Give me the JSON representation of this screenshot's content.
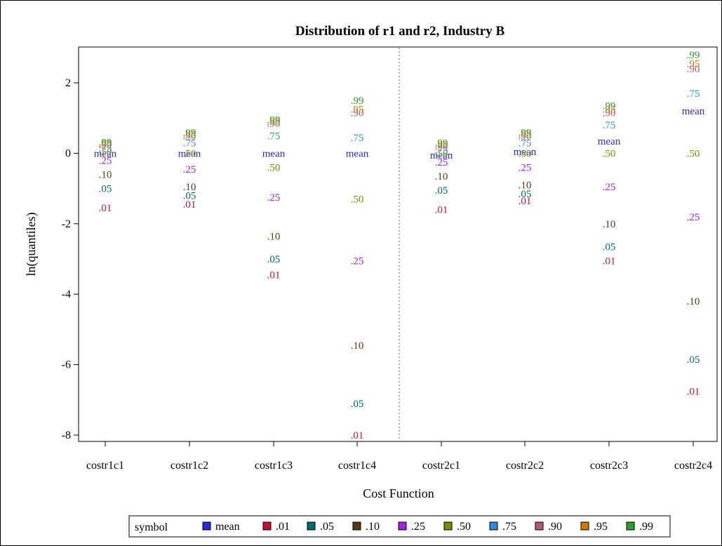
{
  "chart_data": {
    "type": "scatter",
    "title": "Distribution of r1 and r2, Industry B",
    "xlabel": "Cost Function",
    "ylabel": "ln(quantiles)",
    "ylim": [
      -8.2,
      3.0
    ],
    "yticks": [
      -8,
      -6,
      -4,
      -2,
      0,
      2
    ],
    "ytick_labels": [
      "-8",
      "-6",
      "-4",
      "-2",
      "0",
      "2"
    ],
    "categories": [
      "costr1c1",
      "costr1c2",
      "costr1c3",
      "costr1c4",
      "costr2c1",
      "costr2c2",
      "costr2c3",
      "costr2c4"
    ],
    "reference_line": {
      "between": [
        "costr1c4",
        "costr2c1"
      ],
      "style": "dotted"
    },
    "legend": {
      "title": "symbol",
      "position": "bottom",
      "entries": [
        "mean",
        ".01",
        ".05",
        ".10",
        ".25",
        ".50",
        ".75",
        ".90",
        ".95",
        ".99"
      ]
    },
    "series": [
      {
        "name": "mean",
        "marker": "mean",
        "color": "#2a2ad8",
        "values": [
          0.0,
          0.0,
          0.0,
          0.0,
          -0.05,
          0.05,
          0.35,
          1.2
        ]
      },
      {
        "name": ".01",
        "marker": ".01",
        "color": "#c8102e",
        "values": [
          -1.55,
          -1.45,
          -3.45,
          -8.0,
          -1.6,
          -1.35,
          -3.05,
          -6.75
        ]
      },
      {
        "name": ".05",
        "marker": ".05",
        "color": "#006b6b",
        "values": [
          -1.0,
          -1.2,
          -3.0,
          -7.1,
          -1.05,
          -1.15,
          -2.65,
          -5.85
        ]
      },
      {
        "name": ".10",
        "marker": ".10",
        "color": "#5c3a10",
        "values": [
          -0.6,
          -0.95,
          -2.35,
          -5.45,
          -0.65,
          -0.9,
          -2.0,
          -4.2
        ]
      },
      {
        "name": ".25",
        "marker": ".25",
        "color": "#a020f0",
        "values": [
          -0.2,
          -0.45,
          -1.25,
          -3.05,
          -0.25,
          -0.4,
          -0.95,
          -1.8
        ]
      },
      {
        "name": ".50",
        "marker": ".50",
        "color": "#7a8c00",
        "values": [
          0.05,
          0.0,
          -0.4,
          -1.3,
          0.0,
          0.0,
          0.0,
          0.0
        ]
      },
      {
        "name": ".75",
        "marker": ".75",
        "color": "#2b8fe0",
        "values": [
          0.15,
          0.3,
          0.5,
          0.45,
          0.1,
          0.3,
          0.8,
          1.7
        ]
      },
      {
        "name": ".90",
        "marker": ".90",
        "color": "#b05a7a",
        "values": [
          0.25,
          0.5,
          0.85,
          1.15,
          0.2,
          0.5,
          1.15,
          2.4
        ]
      },
      {
        "name": ".95",
        "marker": ".95",
        "color": "#d07a00",
        "values": [
          0.28,
          0.55,
          0.9,
          1.25,
          0.25,
          0.55,
          1.25,
          2.55
        ]
      },
      {
        "name": ".99",
        "marker": ".99",
        "color": "#2e9e2e",
        "values": [
          0.32,
          0.6,
          0.95,
          1.5,
          0.3,
          0.6,
          1.35,
          2.8
        ]
      }
    ]
  }
}
